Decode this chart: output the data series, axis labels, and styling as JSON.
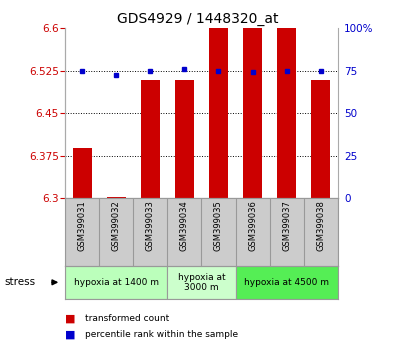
{
  "title": "GDS4929 / 1448320_at",
  "samples": [
    "GSM399031",
    "GSM399032",
    "GSM399033",
    "GSM399034",
    "GSM399035",
    "GSM399036",
    "GSM399037",
    "GSM399038"
  ],
  "bar_values": [
    6.388,
    6.302,
    6.508,
    6.508,
    6.6,
    6.6,
    6.6,
    6.508
  ],
  "dot_values": [
    6.525,
    6.518,
    6.525,
    6.528,
    6.525,
    6.522,
    6.525,
    6.525
  ],
  "ylim": [
    6.3,
    6.6
  ],
  "yticks": [
    6.3,
    6.375,
    6.45,
    6.525,
    6.6
  ],
  "ytick_labels": [
    "6.3",
    "6.375",
    "6.45",
    "6.525",
    "6.6"
  ],
  "right_yticks": [
    0,
    25,
    50,
    75,
    100
  ],
  "right_ytick_labels": [
    "0",
    "25",
    "50",
    "75",
    "100%"
  ],
  "bar_color": "#cc0000",
  "dot_color": "#0000cc",
  "bar_bottom": 6.3,
  "groups": [
    {
      "label": "hypoxia at 1400 m",
      "start": 0,
      "end": 3,
      "color": "#bbffbb"
    },
    {
      "label": "hypoxia at\n3000 m",
      "start": 3,
      "end": 5,
      "color": "#ccffcc"
    },
    {
      "label": "hypoxia at 4500 m",
      "start": 5,
      "end": 8,
      "color": "#55ee55"
    }
  ],
  "stress_label": "stress",
  "legend_items": [
    {
      "color": "#cc0000",
      "label": "transformed count"
    },
    {
      "color": "#0000cc",
      "label": "percentile rank within the sample"
    }
  ],
  "grid_color": "#000000",
  "axis_label_color_left": "#cc0000",
  "axis_label_color_right": "#0000cc",
  "sample_box_color": "#cccccc",
  "separator_color": "#999999"
}
